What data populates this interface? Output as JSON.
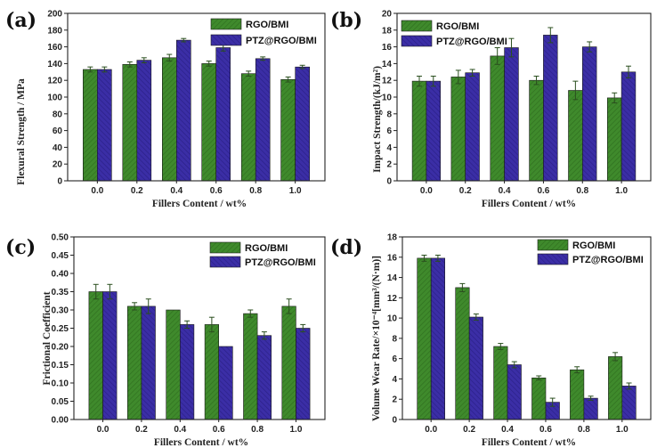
{
  "colors": {
    "green": "#3f8a2c",
    "purple": "#3b2ea6",
    "error": "#2b4f1f",
    "axis": "#222222"
  },
  "chart_data": [
    {
      "type": "bar",
      "panel_label": "(a)",
      "categories": [
        "0.0",
        "0.2",
        "0.4",
        "0.6",
        "0.8",
        "1.0"
      ],
      "series": [
        {
          "name": "RGO/BMI",
          "values": [
            133,
            139,
            147,
            140,
            128,
            121
          ],
          "errors": [
            3,
            3,
            4,
            3,
            3,
            3
          ]
        },
        {
          "name": "PTZ@RGO/BMI",
          "values": [
            133,
            144,
            168,
            159,
            146,
            136
          ],
          "errors": [
            3,
            3,
            2,
            4,
            2,
            2
          ]
        }
      ],
      "xlabel": "Fillers Content / wt%",
      "ylabel": "Flexural Strength / MPa",
      "ylim": [
        0,
        200
      ],
      "yticks": [
        "0",
        "20",
        "40",
        "60",
        "80",
        "100",
        "120",
        "140",
        "160",
        "180",
        "200"
      ],
      "legend": "top-right"
    },
    {
      "type": "bar",
      "panel_label": "(b)",
      "categories": [
        "0.0",
        "0.2",
        "0.4",
        "0.6",
        "0.8",
        "1.0"
      ],
      "series": [
        {
          "name": "RGO/BMI",
          "values": [
            11.9,
            12.4,
            14.9,
            12.0,
            10.8,
            9.9
          ],
          "errors": [
            0.6,
            0.8,
            1.0,
            0.5,
            1.1,
            0.6
          ]
        },
        {
          "name": "PTZ@RGO/BMI",
          "values": [
            11.9,
            12.9,
            15.9,
            17.4,
            16.0,
            13.0
          ],
          "errors": [
            0.6,
            0.4,
            1.1,
            0.9,
            0.6,
            0.7
          ]
        }
      ],
      "xlabel": "Fillers Content / wt%",
      "ylabel": "Impact Strength/(kJ/m²)",
      "ylim": [
        0,
        20
      ],
      "yticks": [
        "0",
        "2",
        "4",
        "6",
        "8",
        "10",
        "12",
        "14",
        "16",
        "18",
        "20"
      ],
      "legend": "top-left"
    },
    {
      "type": "bar",
      "panel_label": "(c)",
      "categories": [
        "0.0",
        "0.2",
        "0.4",
        "0.6",
        "0.8",
        "1.0"
      ],
      "series": [
        {
          "name": "RGO/BMI",
          "values": [
            0.35,
            0.31,
            0.3,
            0.26,
            0.29,
            0.31
          ],
          "errors": [
            0.02,
            0.01,
            0.0,
            0.02,
            0.01,
            0.02
          ]
        },
        {
          "name": "PTZ@RGO/BMI",
          "values": [
            0.35,
            0.31,
            0.26,
            0.2,
            0.23,
            0.25
          ],
          "errors": [
            0.02,
            0.02,
            0.01,
            0.0,
            0.01,
            0.01
          ]
        }
      ],
      "xlabel": "Fillers Content / wt%",
      "ylabel": "Frictional Coefficient",
      "ylim": [
        0,
        0.5
      ],
      "yticks": [
        "0.00",
        "0.05",
        "0.10",
        "0.15",
        "0.20",
        "0.25",
        "0.30",
        "0.35",
        "0.40",
        "0.45",
        "0.50"
      ],
      "legend": "top-right"
    },
    {
      "type": "bar",
      "panel_label": "(d)",
      "categories": [
        "0.0",
        "0.2",
        "0.4",
        "0.6",
        "0.8",
        "1.0"
      ],
      "series": [
        {
          "name": "RGO/BMI",
          "values": [
            15.9,
            13.0,
            7.2,
            4.1,
            4.9,
            6.2
          ],
          "errors": [
            0.3,
            0.4,
            0.3,
            0.2,
            0.3,
            0.4
          ]
        },
        {
          "name": "PTZ@RGO/BMI",
          "values": [
            15.9,
            10.1,
            5.4,
            1.7,
            2.1,
            3.3
          ],
          "errors": [
            0.3,
            0.3,
            0.3,
            0.4,
            0.2,
            0.3
          ]
        }
      ],
      "xlabel": "Fillers Content / wt%",
      "ylabel": "Volume Wear Rate/×10⁻⁴[mm³/(N·m)]",
      "ylim": [
        0,
        18
      ],
      "yticks": [
        "0",
        "2",
        "4",
        "6",
        "8",
        "10",
        "12",
        "14",
        "16",
        "18"
      ],
      "legend": "top-right"
    }
  ]
}
